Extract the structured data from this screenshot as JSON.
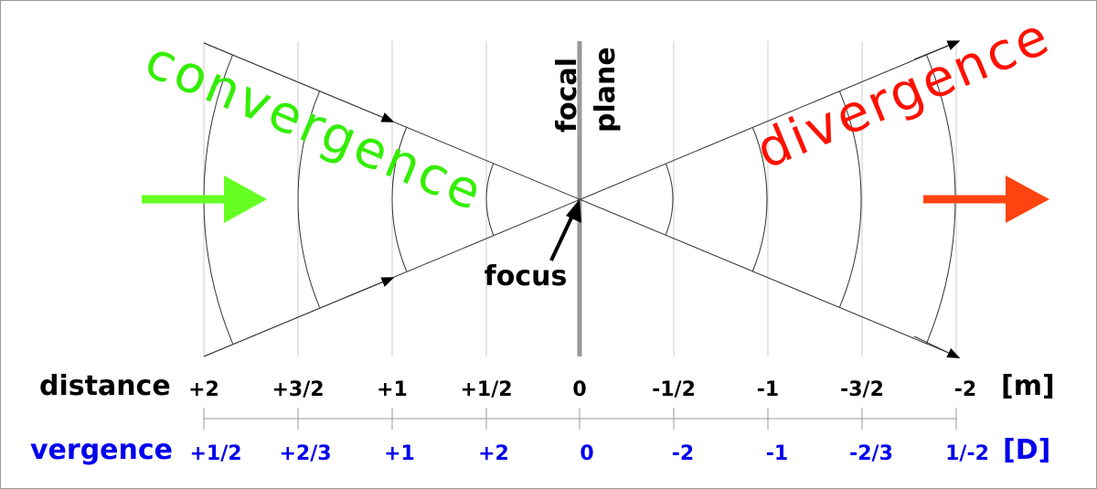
{
  "labels": {
    "convergence": "convergence",
    "divergence": "divergence",
    "focal_plane": [
      "focal",
      "plane"
    ],
    "focus": "focus"
  },
  "distance": {
    "label": "distance",
    "unit": "[m]",
    "ticks": [
      "+2",
      "+3/2",
      "+1",
      "+1/2",
      "0",
      "-1/2",
      "-1",
      "-3/2",
      "-2"
    ]
  },
  "vergence": {
    "label": "vergence",
    "unit": "[D]",
    "ticks": [
      "+1/2",
      "+2/3",
      "+1",
      "+2",
      "0",
      "-2",
      "-1",
      "-2/3",
      "1/-2"
    ]
  }
}
